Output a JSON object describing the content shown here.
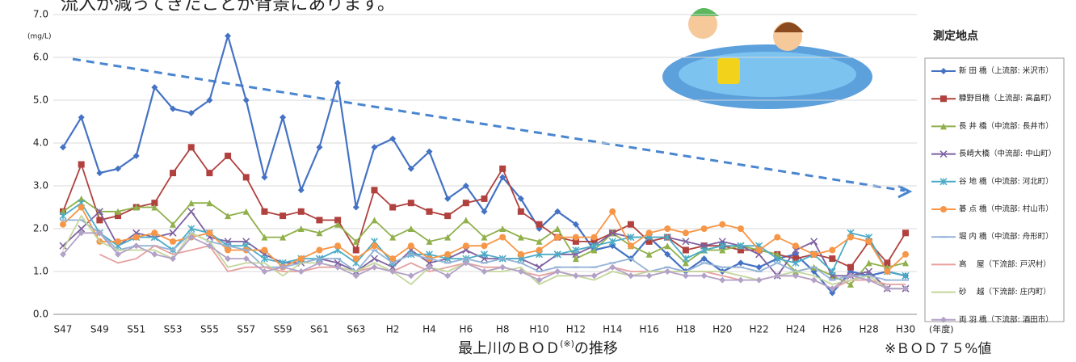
{
  "chart_data": {
    "type": "line",
    "top_text": "流入が減ってきたことが背景にあります。",
    "y_unit": "(mg/L)",
    "x_unit": "(年度)",
    "caption": "最上川のＢＯＤ",
    "caption_sup": "(※)",
    "caption_end": "の推移",
    "footnote": "※ＢＯＤ７５%値",
    "legend_title": "測定地点",
    "categories": [
      "S47",
      null,
      "S49",
      null,
      "S51",
      null,
      "S53",
      null,
      "S55",
      null,
      "S57",
      null,
      "S59",
      null,
      "S61",
      null,
      "S63",
      null,
      "H2",
      null,
      "H4",
      null,
      "H6",
      null,
      "H8",
      null,
      "H10",
      null,
      "H12",
      null,
      "H14",
      null,
      "H16",
      null,
      "H18",
      null,
      "H20",
      null,
      "H22",
      null,
      "H24",
      null,
      "H26",
      null,
      "H28",
      null,
      "H30"
    ],
    "ylim": [
      0,
      7
    ],
    "yticks": [
      {
        "value": 0,
        "label": "0.0"
      },
      {
        "value": 1,
        "label": "1.0"
      },
      {
        "value": 2,
        "label": "2.0"
      },
      {
        "value": 3,
        "label": "3.0"
      },
      {
        "value": 4,
        "label": "4.0"
      },
      {
        "value": 5,
        "label": "5.0"
      },
      {
        "value": 6,
        "label": "6.0"
      },
      {
        "value": 7,
        "label": "7.0"
      }
    ],
    "grid": true,
    "series": [
      {
        "name": "新 田 橋（上流部: 米沢市）",
        "color": "#4472c4",
        "marker": "diamond",
        "values": [
          3.9,
          4.6,
          3.3,
          3.4,
          3.7,
          5.3,
          4.8,
          4.7,
          5.0,
          6.5,
          5.0,
          3.2,
          4.6,
          2.9,
          3.9,
          5.4,
          2.5,
          3.9,
          4.1,
          3.4,
          3.8,
          2.7,
          3.0,
          2.4,
          3.2,
          2.7,
          2.0,
          2.4,
          2.1,
          1.5,
          1.6,
          1.3,
          1.8,
          1.4,
          1.0,
          1.3,
          1.0,
          1.2,
          1.1,
          1.3,
          1.4,
          1.0,
          0.5,
          1.0,
          0.9,
          1.0,
          0.9
        ]
      },
      {
        "name": "糠野目橋（上流部: 高畠町）",
        "color": "#b0413e",
        "marker": "square",
        "values": [
          2.4,
          3.5,
          2.2,
          2.3,
          2.5,
          2.6,
          3.3,
          3.9,
          3.3,
          3.7,
          3.2,
          2.4,
          2.3,
          2.4,
          2.2,
          2.2,
          1.5,
          2.9,
          2.5,
          2.6,
          2.4,
          2.3,
          2.6,
          2.7,
          3.4,
          2.4,
          2.1,
          1.8,
          1.7,
          1.7,
          1.9,
          2.1,
          1.7,
          1.8,
          1.5,
          1.6,
          1.6,
          1.5,
          1.5,
          1.4,
          1.3,
          1.4,
          1.3,
          1.1,
          1.7,
          1.2,
          1.9
        ]
      },
      {
        "name": "長 井 橋（中流部: 長井市）",
        "color": "#8fb04a",
        "marker": "triangle",
        "values": [
          2.4,
          2.7,
          2.4,
          2.4,
          2.5,
          2.5,
          2.1,
          2.6,
          2.6,
          2.3,
          2.4,
          1.8,
          1.8,
          2.0,
          1.9,
          2.1,
          1.7,
          2.2,
          1.8,
          2.0,
          1.7,
          1.8,
          2.2,
          1.8,
          2.0,
          1.8,
          1.7,
          2.0,
          1.3,
          1.5,
          1.9,
          1.6,
          1.4,
          1.6,
          1.2,
          1.5,
          1.5,
          1.6,
          1.5,
          1.4,
          1.0,
          1.1,
          0.9,
          0.7,
          1.2,
          1.1,
          1.2
        ]
      },
      {
        "name": "長崎大橋（中流部: 中山町）",
        "color": "#7d60a0",
        "marker": "x",
        "values": [
          1.6,
          2.0,
          2.4,
          1.6,
          1.9,
          1.8,
          1.9,
          2.4,
          1.8,
          1.7,
          1.7,
          1.4,
          1.2,
          1.2,
          1.3,
          1.2,
          1.0,
          1.3,
          1.1,
          1.5,
          1.2,
          1.3,
          1.5,
          1.3,
          1.3,
          1.3,
          1.1,
          1.4,
          1.4,
          1.6,
          1.9,
          1.8,
          1.8,
          1.8,
          1.7,
          1.6,
          1.7,
          1.6,
          1.4,
          0.9,
          1.5,
          1.7,
          0.9,
          0.9,
          1.0,
          0.6,
          0.6
        ]
      },
      {
        "name": "谷 地 橋（中流部: 河北町）",
        "color": "#4bacc6",
        "marker": "star",
        "values": [
          2.3,
          2.6,
          1.9,
          1.6,
          1.8,
          1.8,
          1.5,
          2.0,
          1.9,
          1.6,
          1.6,
          1.3,
          1.2,
          1.3,
          1.3,
          1.5,
          1.2,
          1.7,
          1.2,
          1.4,
          1.4,
          1.3,
          1.3,
          1.4,
          1.3,
          1.3,
          1.4,
          1.4,
          1.5,
          1.6,
          1.7,
          1.8,
          1.8,
          1.8,
          1.3,
          1.5,
          1.6,
          1.6,
          1.6,
          1.3,
          1.2,
          1.4,
          1.0,
          1.9,
          1.8,
          1.0,
          0.9
        ]
      },
      {
        "name": "碁 点 橋（中流部: 村山市）",
        "color": "#f79646",
        "marker": "circle",
        "values": [
          2.1,
          2.5,
          1.7,
          1.7,
          1.8,
          1.9,
          1.7,
          1.8,
          1.9,
          1.5,
          1.5,
          1.5,
          1.1,
          1.3,
          1.5,
          1.6,
          1.3,
          1.6,
          1.3,
          1.6,
          1.3,
          1.4,
          1.6,
          1.6,
          1.8,
          1.4,
          1.5,
          1.8,
          1.8,
          1.8,
          2.4,
          1.6,
          1.9,
          2.0,
          1.9,
          2.0,
          2.1,
          2.0,
          1.5,
          1.8,
          1.6,
          1.4,
          1.5,
          1.8,
          1.7,
          1.0,
          1.4
        ]
      },
      {
        "name": "堀 内 橋（中流部: 舟形町）",
        "color": "#95b3d7",
        "marker": "plus",
        "values": [
          2.2,
          2.2,
          1.9,
          1.5,
          1.6,
          1.6,
          1.5,
          1.9,
          1.7,
          1.6,
          1.5,
          1.1,
          1.1,
          1.2,
          1.3,
          1.3,
          1.0,
          1.5,
          1.2,
          1.4,
          1.3,
          1.2,
          1.3,
          1.2,
          1.3,
          1.2,
          1.0,
          1.1,
          1.1,
          1.1,
          1.2,
          1.3,
          1.0,
          1.1,
          1.0,
          1.2,
          1.1,
          1.1,
          1.0,
          1.2,
          1.0,
          1.1,
          0.8,
          0.9,
          0.9,
          0.8,
          0.8
        ]
      },
      {
        "name": "高　 屋（下流部: 戸沢村）",
        "color": "#e6a0a0",
        "marker": "none",
        "values": [
          null,
          null,
          1.4,
          1.2,
          1.3,
          1.6,
          1.4,
          1.5,
          1.6,
          1.0,
          1.1,
          1.1,
          1.0,
          1.0,
          1.1,
          1.1,
          1.0,
          1.1,
          1.0,
          1.2,
          1.0,
          1.1,
          1.2,
          1.1,
          1.1,
          1.0,
          0.9,
          1.0,
          0.9,
          0.9,
          1.1,
          1.0,
          1.0,
          1.0,
          1.0,
          1.0,
          0.9,
          0.8,
          0.8,
          0.9,
          0.9,
          0.8,
          0.6,
          0.8,
          0.8,
          0.7,
          0.7
        ]
      },
      {
        "name": "砂　 越（下流部: 庄内町）",
        "color": "#c3d69b",
        "marker": "none",
        "values": [
          1.5,
          2.3,
          1.7,
          1.5,
          1.5,
          1.5,
          1.3,
          1.9,
          1.7,
          1.1,
          1.2,
          1.2,
          0.9,
          1.2,
          1.2,
          1.1,
          1.0,
          1.2,
          1.0,
          0.7,
          1.1,
          1.0,
          1.2,
          1.0,
          1.0,
          1.1,
          0.7,
          0.9,
          0.9,
          0.8,
          1.0,
          0.9,
          1.0,
          1.0,
          1.0,
          1.0,
          1.0,
          0.9,
          0.8,
          0.9,
          1.0,
          0.9,
          0.7,
          0.8,
          0.9,
          0.6,
          0.6
        ]
      },
      {
        "name": "両 羽 橋（下流部: 酒田市）",
        "color": "#b3a2c7",
        "marker": "diamond",
        "values": [
          1.4,
          1.9,
          1.9,
          1.4,
          1.6,
          1.4,
          1.3,
          1.8,
          1.6,
          1.3,
          1.3,
          1.0,
          1.1,
          1.0,
          1.2,
          1.1,
          0.9,
          1.1,
          1.0,
          0.9,
          1.1,
          0.9,
          1.2,
          1.0,
          1.1,
          1.0,
          0.8,
          1.0,
          0.9,
          0.9,
          1.1,
          0.9,
          0.9,
          1.0,
          0.9,
          0.9,
          0.8,
          0.8,
          0.8,
          0.9,
          0.9,
          0.8,
          0.6,
          0.9,
          0.8,
          0.6,
          0.6
        ]
      }
    ]
  }
}
